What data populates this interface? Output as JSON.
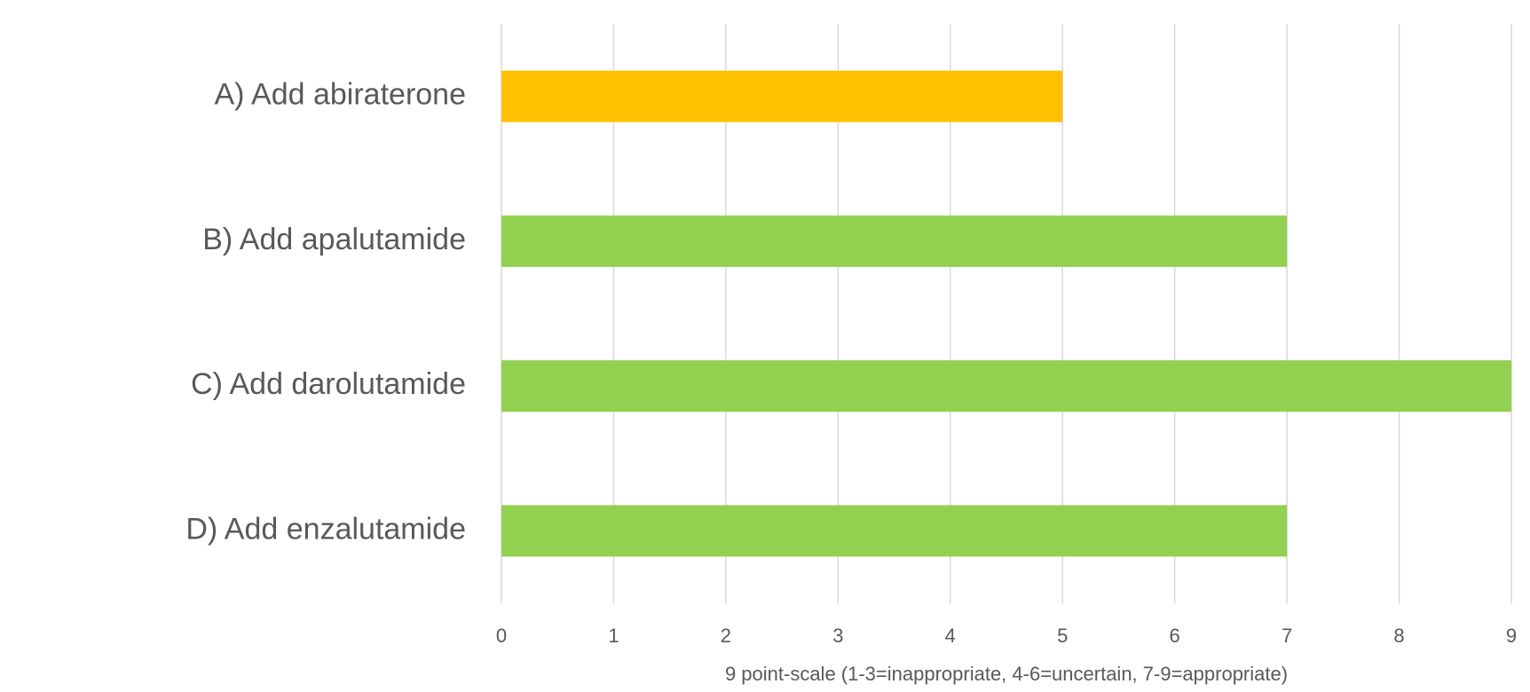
{
  "chart_data": {
    "type": "bar",
    "orientation": "horizontal",
    "categories": [
      "A) Add abiraterone",
      "B) Add apalutamide",
      "C) Add darolutamide",
      "D) Add enzalutamide"
    ],
    "values": [
      5,
      7,
      9,
      7
    ],
    "colors": [
      "#ffc000",
      "#92d050",
      "#92d050",
      "#92d050"
    ],
    "x_label": "9 point-scale (1-3=inappropriate, 4-6=uncertain, 7-9=appropriate)",
    "xlim": [
      0,
      9
    ],
    "xticks": [
      0,
      1,
      2,
      3,
      4,
      5,
      6,
      7,
      8,
      9
    ],
    "grid": true
  }
}
